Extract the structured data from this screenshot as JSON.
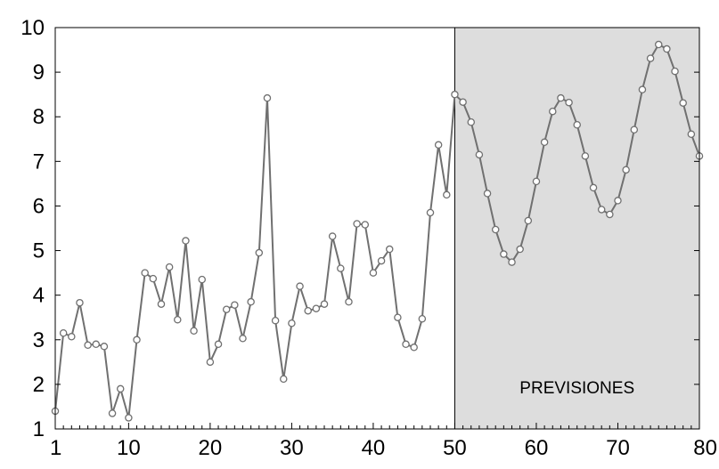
{
  "chart_data": {
    "type": "line",
    "title": "",
    "xlabel": "",
    "ylabel": "",
    "xlim": [
      1,
      80
    ],
    "ylim": [
      1,
      10
    ],
    "x_ticks": [
      1,
      10,
      20,
      30,
      40,
      50,
      60,
      70,
      80
    ],
    "y_ticks": [
      1,
      2,
      3,
      4,
      5,
      6,
      7,
      8,
      9,
      10
    ],
    "grid": false,
    "legend": "none",
    "line_color": "#707070",
    "marker": "open-circle",
    "shaded_region": {
      "x_start": 50,
      "x_end": 80,
      "color": "#dddddd",
      "label": "PREVISIONES"
    },
    "series": [
      {
        "values": [
          1.4,
          3.15,
          3.07,
          3.83,
          2.88,
          2.9,
          2.85,
          1.35,
          1.9,
          1.25,
          3.0,
          4.5,
          4.37,
          3.8,
          4.63,
          3.45,
          5.22,
          3.2,
          4.35,
          2.5,
          2.9,
          3.68,
          3.78,
          3.03,
          3.85,
          4.95,
          8.42,
          3.43,
          2.12,
          3.37,
          4.2,
          3.65,
          3.7,
          3.8,
          5.32,
          4.6,
          3.85,
          5.6,
          5.58,
          4.5,
          4.77,
          5.03,
          3.5,
          2.9,
          2.83,
          3.47,
          5.85,
          7.37,
          6.25,
          8.5,
          8.33,
          7.88,
          7.15,
          6.28,
          5.47,
          4.92,
          4.74,
          5.03,
          5.67,
          6.55,
          7.43,
          8.12,
          8.42,
          8.32,
          7.82,
          7.12,
          6.41,
          5.92,
          5.81,
          6.12,
          6.81,
          7.71,
          8.61,
          9.31,
          9.62,
          9.52,
          9.02,
          8.31,
          7.61,
          7.12
        ]
      }
    ]
  }
}
